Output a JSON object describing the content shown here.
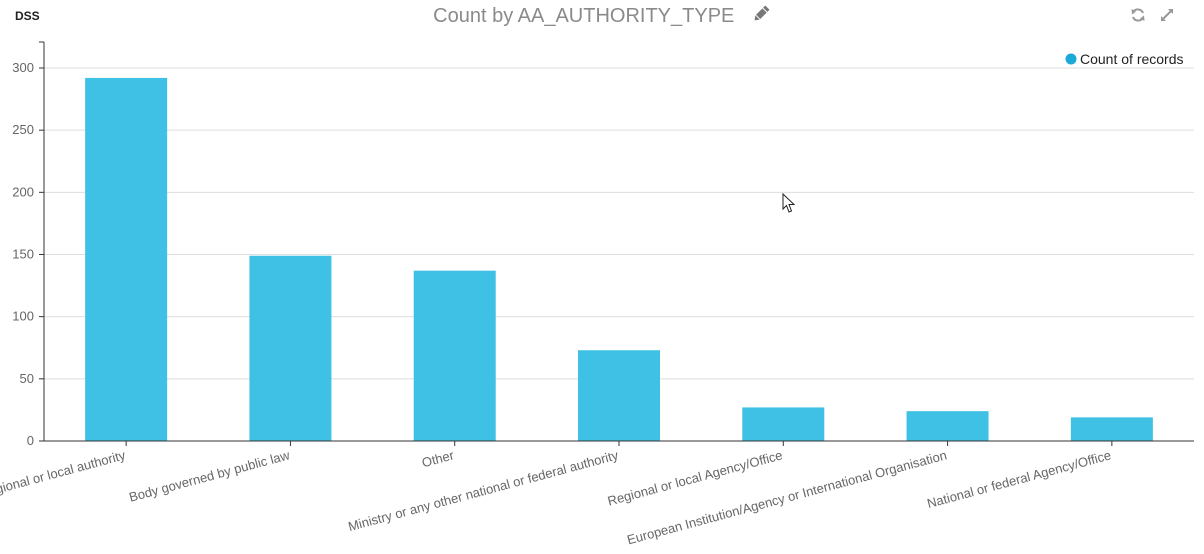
{
  "header": {
    "brand": "DSS",
    "title": "Count by AA_AUTHORITY_TYPE"
  },
  "icons": {
    "edit": "pencil-icon",
    "refresh": "refresh-icon",
    "expand": "expand-icon"
  },
  "colors": {
    "bar": "#3ec1e4",
    "legend_dot": "#1ba9d7"
  },
  "chart_data": {
    "type": "bar",
    "title": "Count by AA_AUTHORITY_TYPE",
    "xlabel": "",
    "ylabel": "",
    "ylim": [
      0,
      320
    ],
    "yticks": [
      0,
      50,
      100,
      150,
      200,
      250,
      300
    ],
    "grid": true,
    "legend": "top-right",
    "categories": [
      "Regional or local authority",
      "Body governed by public law",
      "Other",
      "Ministry or any other national or federal authority",
      "Regional or local Agency/Office",
      "European Institution/Agency or International Organisation",
      "National or federal Agency/Office"
    ],
    "series": [
      {
        "name": "Count of records",
        "values": [
          292,
          149,
          137,
          73,
          27,
          24,
          19
        ]
      }
    ]
  }
}
